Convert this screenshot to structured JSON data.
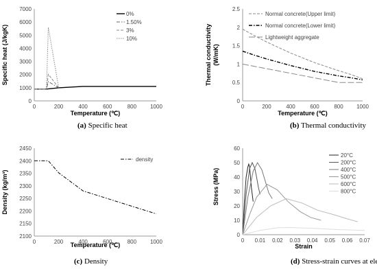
{
  "chart_data": [
    {
      "type": "line",
      "caption_letter": "(a)",
      "caption_text": "Specific heat",
      "xlabel": "Temperature (℃)",
      "ylabel": "Specific heat (J/kgK)",
      "xlim": [
        0,
        1000
      ],
      "ylim": [
        0,
        7000
      ],
      "xticks": [
        "0",
        "200",
        "400",
        "600",
        "800",
        "1000"
      ],
      "yticks": [
        "0",
        "1000",
        "2000",
        "3000",
        "4000",
        "5000",
        "6000",
        "7000"
      ],
      "grid": false,
      "legend": "top-right",
      "series": [
        {
          "name": "0%",
          "color": "#000000",
          "dash": "solid",
          "width": 1.4,
          "x": [
            0,
            100,
            200,
            400,
            1000
          ],
          "y": [
            900,
            900,
            1000,
            1100,
            1100
          ]
        },
        {
          "name": "1.50%",
          "color": "#666666",
          "dash": "dashdot",
          "width": 1,
          "x": [
            0,
            100,
            115,
            200,
            200
          ],
          "y": [
            900,
            900,
            1470,
            1000,
            1000
          ]
        },
        {
          "name": "3%",
          "color": "#888888",
          "dash": "dashed",
          "width": 1,
          "x": [
            0,
            100,
            115,
            200,
            200
          ],
          "y": [
            900,
            900,
            2020,
            1000,
            1000
          ]
        },
        {
          "name": "10%",
          "color": "#888888",
          "dash": "dotted",
          "width": 1,
          "x": [
            0,
            100,
            115,
            200,
            200
          ],
          "y": [
            900,
            900,
            5600,
            1000,
            1000
          ]
        }
      ]
    },
    {
      "type": "line",
      "caption_letter": "(b)",
      "caption_text": "Thermal conductivity",
      "xlabel": "Temperature (℃)",
      "ylabel": "Thermal conductivity (W/mK)",
      "xlim": [
        0,
        1000
      ],
      "ylim": [
        0,
        2.5
      ],
      "xticks": [
        "0",
        "200",
        "400",
        "600",
        "800",
        "1000"
      ],
      "yticks": [
        "0",
        "0.5",
        "1",
        "1.5",
        "2",
        "2.5"
      ],
      "grid": false,
      "legend": "top-right",
      "series": [
        {
          "name": "Normal concrete(Upper limit)",
          "color": "#888888",
          "dash": "dashed",
          "width": 1,
          "x": [
            0,
            100,
            200,
            300,
            400,
            500,
            600,
            700,
            800,
            900,
            1000
          ],
          "y": [
            1.95,
            1.77,
            1.6,
            1.45,
            1.3,
            1.17,
            1.04,
            0.93,
            0.82,
            0.72,
            0.6
          ]
        },
        {
          "name": "Normal concrete(Lower limit)",
          "color": "#000000",
          "dash": "dashdot",
          "width": 1.4,
          "x": [
            0,
            100,
            200,
            300,
            400,
            500,
            600,
            700,
            800,
            900,
            1000
          ],
          "y": [
            1.35,
            1.24,
            1.14,
            1.05,
            0.96,
            0.88,
            0.8,
            0.74,
            0.68,
            0.63,
            0.57
          ]
        },
        {
          "name": "Lightweight aggregate",
          "color": "#888888",
          "dash": "longdash",
          "width": 1,
          "x": [
            0,
            800,
            1000
          ],
          "y": [
            1.0,
            0.5,
            0.5
          ]
        }
      ]
    },
    {
      "type": "line",
      "caption_letter": "(c)",
      "caption_text": "Density",
      "xlabel": "Temperature (℃)",
      "ylabel": "Density (kg/m³)",
      "xlim": [
        0,
        1000
      ],
      "ylim": [
        2100,
        2450
      ],
      "xticks": [
        "0",
        "200",
        "400",
        "600",
        "800",
        "1000"
      ],
      "yticks": [
        "2100",
        "2150",
        "2200",
        "2250",
        "2300",
        "2350",
        "2400",
        "2450"
      ],
      "grid": false,
      "legend": "top-right",
      "series": [
        {
          "name": "density",
          "color": "#000000",
          "dash": "dashdot",
          "width": 1,
          "x": [
            0,
            115,
            200,
            400,
            1200
          ],
          "y": [
            2400,
            2400,
            2352,
            2280,
            2158
          ]
        }
      ]
    },
    {
      "type": "line",
      "caption_letter": "(d)",
      "caption_text": "Stress-strain curves at elevated temperature",
      "xlabel": "Strain",
      "ylabel": "Stress (MPa)",
      "xlim": [
        0,
        0.07
      ],
      "ylim": [
        0,
        60
      ],
      "xticks": [
        "0",
        "0.01",
        "0.02",
        "0.03",
        "0.04",
        "0.05",
        "0.06",
        "0.07"
      ],
      "yticks": [
        "0",
        "10",
        "20",
        "30",
        "40",
        "50",
        "60"
      ],
      "grid": false,
      "legend": "top-right",
      "series": [
        {
          "name": "20°C",
          "color": "#222222",
          "dash": "solid",
          "width": 1,
          "x": [
            0,
            0.001,
            0.002,
            0.003,
            0.0035,
            0.004,
            0.0045,
            0.005,
            0.006
          ],
          "y": [
            0,
            23,
            40,
            47,
            49,
            47,
            40,
            33,
            23
          ]
        },
        {
          "name": "200°C",
          "color": "#555555",
          "dash": "solid",
          "width": 1,
          "x": [
            0,
            0.002,
            0.004,
            0.0055,
            0.007,
            0.008,
            0.009,
            0.01
          ],
          "y": [
            0,
            28,
            46,
            50,
            46,
            40,
            33,
            28
          ]
        },
        {
          "name": "400°C",
          "color": "#777777",
          "dash": "solid",
          "width": 1,
          "x": [
            0,
            0.003,
            0.006,
            0.0085,
            0.011,
            0.013,
            0.015,
            0.017
          ],
          "y": [
            0,
            26,
            44,
            50,
            45,
            37,
            29,
            25
          ]
        },
        {
          "name": "500°C",
          "color": "#999999",
          "dash": "solid",
          "width": 1,
          "x": [
            0,
            0.004,
            0.008,
            0.014,
            0.02,
            0.026,
            0.033,
            0.039,
            0.045
          ],
          "y": [
            0,
            14,
            26,
            35,
            31,
            23,
            16,
            12,
            10
          ]
        },
        {
          "name": "600°C",
          "color": "#bbbbbb",
          "dash": "solid",
          "width": 1,
          "x": [
            0,
            0.008,
            0.016,
            0.025,
            0.034,
            0.043,
            0.052,
            0.06,
            0.066
          ],
          "y": [
            0,
            12,
            20,
            25,
            22,
            17,
            14,
            11,
            9
          ]
        },
        {
          "name": "800°C",
          "color": "#dddddd",
          "dash": "solid",
          "width": 1,
          "x": [
            0,
            0.01,
            0.02,
            0.027,
            0.04,
            0.055,
            0.07
          ],
          "y": [
            0,
            3,
            4.8,
            5,
            4.5,
            3.5,
            3
          ]
        }
      ]
    }
  ]
}
